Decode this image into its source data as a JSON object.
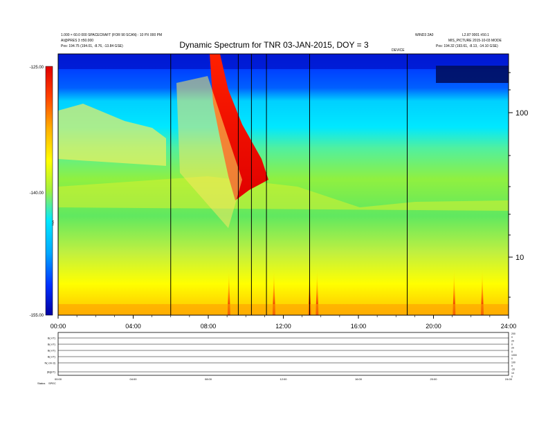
{
  "header": {
    "title": "Dynamic Spectrum for TNR 03-JAN-2015, DOY = 3",
    "left_line1": "1.000 × 60.0 000 SPACECRAFT (FOR 90 SCAN) : 10 PX 000 PM",
    "left_line2": "AI@PRES 3 ±50.000",
    "left_pos": "Pos:   194.75 (194.01, -8.76, -13.84 GSE)",
    "mid_right": "WIND3 2A0",
    "right_line1": "L2.87 0001 ±50.1",
    "right_line2": "MIS_PICTURE 2015-10-03 MODE",
    "right_pos": "Pos:   194.32 (193.61, -8.13, -14.10 GSE)",
    "mid_small": "DEVICE",
    "ylabel_left": "TNR"
  },
  "chart_data": {
    "type": "heatmap",
    "title": "Dynamic Spectrum for TNR 03-JAN-2015, DOY = 3",
    "x_ticks": [
      "00:00",
      "04:00",
      "08:00",
      "12:00",
      "16:00",
      "20:00",
      "24:00"
    ],
    "x_range_hours": [
      0,
      24
    ],
    "right_axis_ticks": [
      "100",
      "10"
    ],
    "right_axis_scale": "log",
    "colorbar_ticks": [
      "-125.00",
      "-140.00",
      "-155.00"
    ],
    "colorbar_range": [
      -155,
      -125
    ],
    "colormap": [
      "#0000a0",
      "#0030ff",
      "#00c8ff",
      "#00e8ff",
      "#60f060",
      "#c8f040",
      "#ffff00",
      "#ffb000",
      "#ff2000",
      "#e00000"
    ],
    "vertical_markers_hours": [
      6.0,
      9.6,
      10.3,
      11.1,
      13.4,
      18.6
    ],
    "red_type3_bursts_hours": [
      9.1,
      11.5,
      13.4,
      13.8,
      21.1,
      22.6
    ],
    "type2_drift": {
      "start_hour": 8.0,
      "end_hour": 10.0
    }
  },
  "bottom_panel": {
    "row_labels": [
      "B( nT)",
      "B( nT)",
      "B( nT)",
      "B( nT)",
      "N( cm-3)",
      "|B|(nT)"
    ],
    "right_ticks": [
      "200",
      "0",
      "20",
      "0",
      "20",
      "0",
      "1000",
      "0",
      "100",
      "0",
      "-20",
      "10",
      "0"
    ],
    "x_ticks": [
      "00:00",
      "04:00",
      "08:00",
      "12:00",
      "16:00",
      "20:00",
      "24:00"
    ],
    "footer_label": "Status",
    "footer_value": "SPEC"
  }
}
